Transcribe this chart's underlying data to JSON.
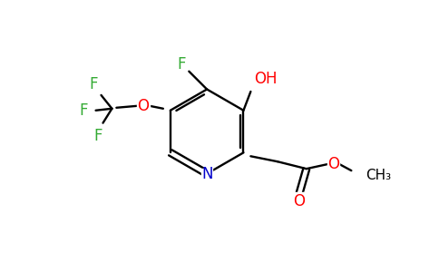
{
  "bg_color": "#ffffff",
  "atom_colors": {
    "C": "#000000",
    "N": "#0000cc",
    "O": "#ff0000",
    "F": "#33aa33",
    "H": "#000000"
  },
  "bond_color": "#000000",
  "figsize": [
    4.84,
    3.0
  ],
  "dpi": 100
}
